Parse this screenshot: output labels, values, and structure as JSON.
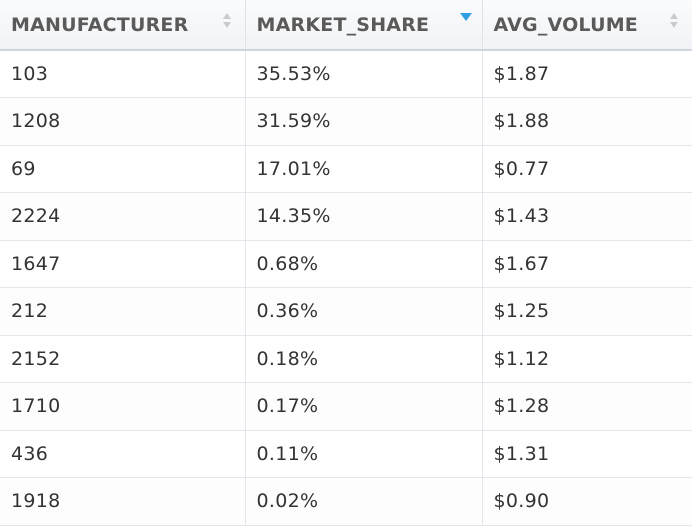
{
  "columns": [
    {
      "label": "MANUFACTURER",
      "sort_state": "none"
    },
    {
      "label": "MARKET_SHARE",
      "sort_state": "descending"
    },
    {
      "label": "AVG_VOLUME",
      "sort_state": "none"
    }
  ],
  "rows": [
    {
      "manufacturer": "103",
      "market_share": "35.53%",
      "avg_volume": "$1.87"
    },
    {
      "manufacturer": "1208",
      "market_share": "31.59%",
      "avg_volume": "$1.88"
    },
    {
      "manufacturer": "69",
      "market_share": "17.01%",
      "avg_volume": "$0.77"
    },
    {
      "manufacturer": "2224",
      "market_share": "14.35%",
      "avg_volume": "$1.43"
    },
    {
      "manufacturer": "1647",
      "market_share": "0.68%",
      "avg_volume": "$1.67"
    },
    {
      "manufacturer": "212",
      "market_share": "0.36%",
      "avg_volume": "$1.25"
    },
    {
      "manufacturer": "2152",
      "market_share": "0.18%",
      "avg_volume": "$1.12"
    },
    {
      "manufacturer": "1710",
      "market_share": "0.17%",
      "avg_volume": "$1.28"
    },
    {
      "manufacturer": "436",
      "market_share": "0.11%",
      "avg_volume": "$1.31"
    },
    {
      "manufacturer": "1918",
      "market_share": "0.02%",
      "avg_volume": "$0.90"
    }
  ],
  "colors": {
    "header_text": "#5a5a5a",
    "cell_text": "#333333",
    "active_sort": "#2e9fe0",
    "inactive_sort": "#c8ccd1",
    "grid_line": "#e3e6ea"
  }
}
